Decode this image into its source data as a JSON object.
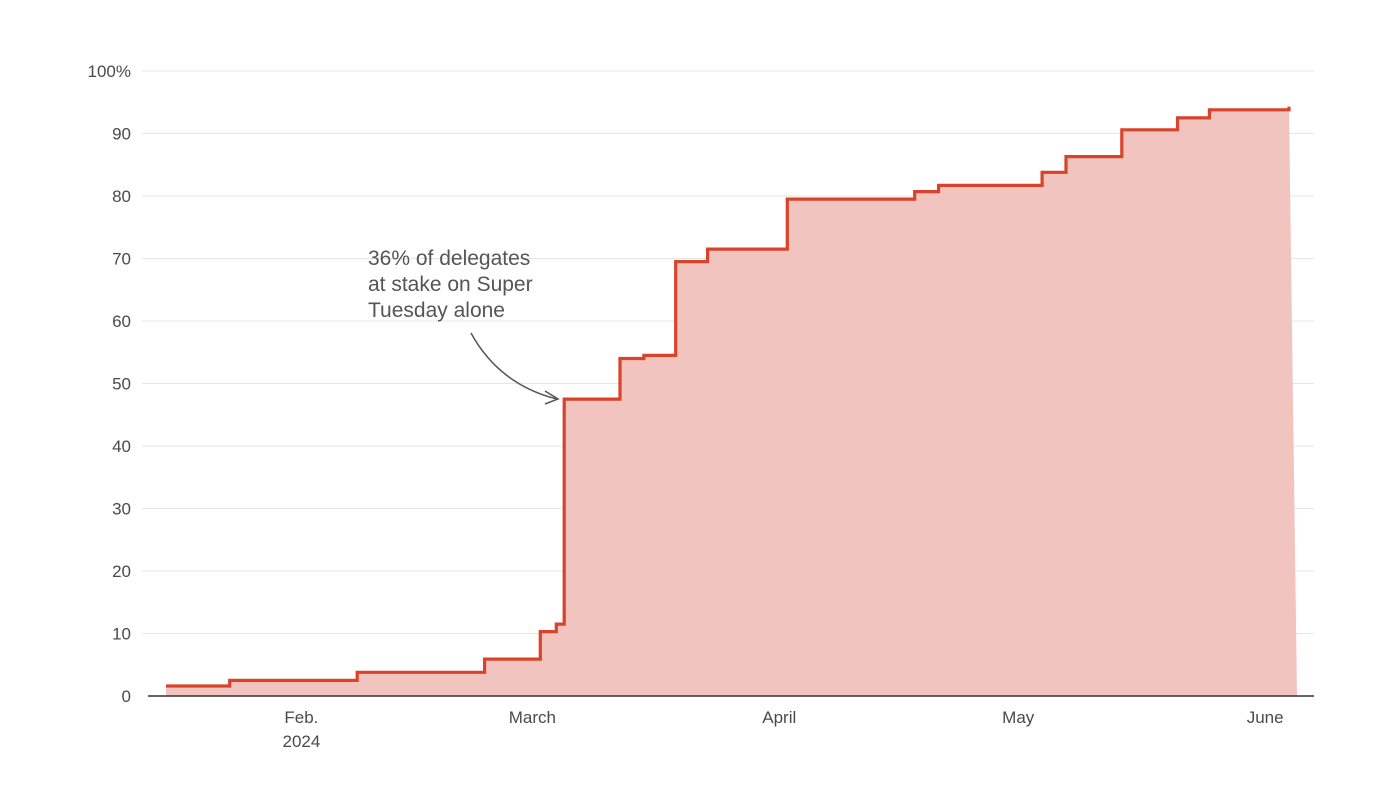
{
  "chart_data": {
    "type": "area",
    "title": "",
    "xlabel": "",
    "ylabel": "",
    "ylim": [
      0,
      100
    ],
    "y_ticks": [
      0,
      10,
      20,
      30,
      40,
      50,
      60,
      70,
      80,
      90,
      100
    ],
    "y_tick_labels": [
      "0",
      "10",
      "20",
      "30",
      "40",
      "50",
      "60",
      "70",
      "80",
      "90",
      "100%"
    ],
    "xlim": [
      "2024-01-15",
      "2024-06-05"
    ],
    "x_ticks": [
      {
        "date": "2024-02-01",
        "lines": [
          "Feb.",
          "2024"
        ]
      },
      {
        "date": "2024-03-01",
        "lines": [
          "March"
        ]
      },
      {
        "date": "2024-04-01",
        "lines": [
          "April"
        ]
      },
      {
        "date": "2024-05-01",
        "lines": [
          "May"
        ]
      },
      {
        "date": "2024-06-01",
        "lines": [
          "June"
        ]
      }
    ],
    "grid": true,
    "step": true,
    "series": [
      {
        "x": [
          "2024-01-15",
          "2024-01-23",
          "2024-02-08",
          "2024-02-24",
          "2024-03-02",
          "2024-03-04",
          "2024-03-05",
          "2024-03-12",
          "2024-03-15",
          "2024-03-19",
          "2024-03-23",
          "2024-04-02",
          "2024-04-18",
          "2024-04-21",
          "2024-05-04",
          "2024-05-07",
          "2024-05-14",
          "2024-05-21",
          "2024-05-25",
          "2024-06-04"
        ],
        "y": [
          1.6,
          2.5,
          3.8,
          5.9,
          10.3,
          11.5,
          47.5,
          54.0,
          54.5,
          69.5,
          71.5,
          79.5,
          80.7,
          81.7,
          83.8,
          86.3,
          90.6,
          92.5,
          93.8,
          94.3
        ]
      }
    ],
    "colors": {
      "line": "#d9432b",
      "fill": "#f2c4bf",
      "grid": "#e6e6e6",
      "axis": "#333333",
      "text": "#4a4a4a",
      "annotation": "#555555"
    },
    "annotations": [
      {
        "lines": [
          "36% of delegates",
          "at stake on Super",
          "Tuesday alone"
        ],
        "points_to": {
          "date": "2024-03-05",
          "y": 47.5
        }
      }
    ]
  }
}
